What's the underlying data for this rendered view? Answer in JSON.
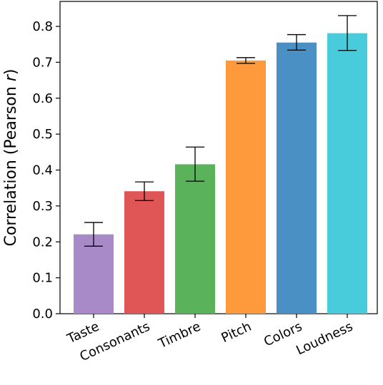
{
  "chart_data": {
    "type": "bar",
    "title": "",
    "xlabel": "",
    "ylabel": "Correlation (Pearson ",
    "ylabel_var": "r",
    "ylabel_close": ")",
    "categories": [
      "Taste",
      "Consonants",
      "Timbre",
      "Pitch",
      "Colors",
      "Loudness"
    ],
    "values": [
      0.221,
      0.341,
      0.416,
      0.705,
      0.755,
      0.781
    ],
    "error_low": [
      0.188,
      0.315,
      0.369,
      0.697,
      0.734,
      0.733
    ],
    "error_high": [
      0.254,
      0.367,
      0.464,
      0.713,
      0.777,
      0.83
    ],
    "colors": [
      "#a98ac9",
      "#e05555",
      "#5ab25a",
      "#ff9a3c",
      "#4a90c4",
      "#48cbdb"
    ],
    "yticks": [
      "0.0",
      "0.1",
      "0.2",
      "0.3",
      "0.4",
      "0.5",
      "0.6",
      "0.7",
      "0.8"
    ],
    "ylim": [
      0,
      0.85
    ],
    "grid": false
  }
}
